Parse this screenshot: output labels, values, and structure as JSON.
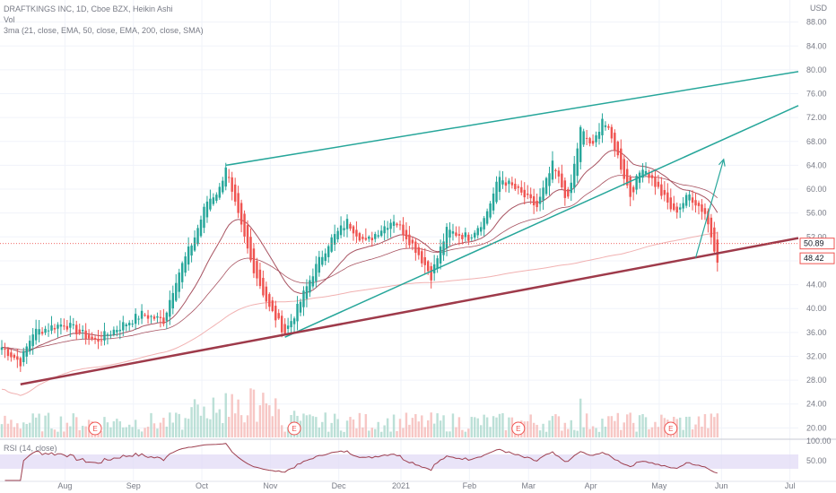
{
  "header": {
    "title": "DRAFTKINGS INC, 1D, Cboe BZX, Heikin Ashi",
    "vol_label": "Vol",
    "ma_label": "3ma (21, close, EMA, 50, close, EMA, 200, close, SMA)",
    "currency": "USD"
  },
  "rsi": {
    "label": "RSI (14, close)",
    "ticks": [
      "100.00",
      "50.00"
    ]
  },
  "price_badges": {
    "last": "50.89",
    "low": "48.42"
  },
  "earnings_marker": "E",
  "colors": {
    "bull": "#26a69a",
    "bear": "#ef5350",
    "trend_top": "#26a69a",
    "support": "#9e3a4a",
    "ema21": "#9e4050",
    "ema50": "#9e4050",
    "sma200": "#f0a8a8",
    "rsi_line": "#9e4050",
    "rsi_band": "#e0d8f5"
  },
  "chart_data": {
    "type": "candlestick",
    "title": "DRAFTKINGS INC, 1D, Cboe BZX, Heikin Ashi",
    "x_ticks": [
      "Aug",
      "Sep",
      "Oct",
      "Nov",
      "Dec",
      "2021",
      "Feb",
      "Mar",
      "Apr",
      "May",
      "Jun",
      "Jul"
    ],
    "y_ticks": [
      "88.00",
      "84.00",
      "80.00",
      "76.00",
      "72.00",
      "68.00",
      "64.00",
      "60.00",
      "56.00",
      "52.00",
      "48.00",
      "44.00",
      "40.00",
      "36.00",
      "32.00",
      "28.00",
      "24.00",
      "20.00"
    ],
    "ylim": [
      18.4,
      90.2
    ],
    "x_index_range": [
      0,
      256
    ],
    "key_prices": [
      {
        "t": 0,
        "p": 33.5
      },
      {
        "t": 6,
        "p": 31
      },
      {
        "t": 10,
        "p": 36
      },
      {
        "t": 20,
        "p": 37.5
      },
      {
        "t": 30,
        "p": 34.5
      },
      {
        "t": 38,
        "p": 37
      },
      {
        "t": 45,
        "p": 39
      },
      {
        "t": 52,
        "p": 38
      },
      {
        "t": 56,
        "p": 45
      },
      {
        "t": 62,
        "p": 52
      },
      {
        "t": 66,
        "p": 58
      },
      {
        "t": 70,
        "p": 60
      },
      {
        "t": 72,
        "p": 64
      },
      {
        "t": 74,
        "p": 59
      },
      {
        "t": 80,
        "p": 48
      },
      {
        "t": 86,
        "p": 40
      },
      {
        "t": 91,
        "p": 36
      },
      {
        "t": 95,
        "p": 40
      },
      {
        "t": 100,
        "p": 46
      },
      {
        "t": 105,
        "p": 51
      },
      {
        "t": 111,
        "p": 54.5
      },
      {
        "t": 117,
        "p": 51
      },
      {
        "t": 121,
        "p": 53
      },
      {
        "t": 126,
        "p": 55
      },
      {
        "t": 133,
        "p": 50
      },
      {
        "t": 138,
        "p": 45.5
      },
      {
        "t": 143,
        "p": 53
      },
      {
        "t": 150,
        "p": 52
      },
      {
        "t": 155,
        "p": 55
      },
      {
        "t": 160,
        "p": 62
      },
      {
        "t": 165,
        "p": 60
      },
      {
        "t": 172,
        "p": 57
      },
      {
        "t": 177,
        "p": 64
      },
      {
        "t": 182,
        "p": 58
      },
      {
        "t": 186,
        "p": 70
      },
      {
        "t": 190,
        "p": 67
      },
      {
        "t": 193,
        "p": 72
      },
      {
        "t": 197,
        "p": 67
      },
      {
        "t": 202,
        "p": 59
      },
      {
        "t": 206,
        "p": 64
      },
      {
        "t": 211,
        "p": 60
      },
      {
        "t": 216,
        "p": 56
      },
      {
        "t": 221,
        "p": 59
      },
      {
        "t": 226,
        "p": 56
      },
      {
        "t": 230,
        "p": 48.4
      }
    ],
    "trendlines": [
      {
        "name": "upper-channel",
        "from": {
          "t": 72,
          "p": 64.0
        },
        "to": {
          "t": 256,
          "p": 79.7
        }
      },
      {
        "name": "rising-support",
        "from": {
          "t": 91,
          "p": 35.2
        },
        "to": {
          "t": 256,
          "p": 74.0
        }
      },
      {
        "name": "base-support",
        "from": {
          "t": 6,
          "p": 27.3
        },
        "to": {
          "t": 256,
          "p": 51.8
        }
      }
    ],
    "projection_arrow": {
      "from": {
        "t": 223,
        "p": 48.5
      },
      "to": {
        "t": 232,
        "p": 65.0
      }
    },
    "earnings_t": [
      30,
      94,
      166,
      215
    ]
  }
}
